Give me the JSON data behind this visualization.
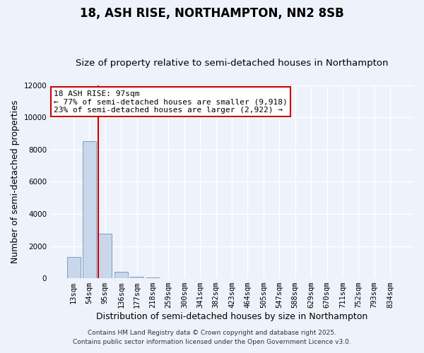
{
  "title": "18, ASH RISE, NORTHAMPTON, NN2 8SB",
  "subtitle": "Size of property relative to semi-detached houses in Northampton",
  "xlabel": "Distribution of semi-detached houses by size in Northampton",
  "ylabel": "Number of semi-detached properties",
  "categories": [
    "13sqm",
    "54sqm",
    "95sqm",
    "136sqm",
    "177sqm",
    "218sqm",
    "259sqm",
    "300sqm",
    "341sqm",
    "382sqm",
    "423sqm",
    "464sqm",
    "505sqm",
    "547sqm",
    "588sqm",
    "629sqm",
    "670sqm",
    "711sqm",
    "752sqm",
    "793sqm",
    "834sqm"
  ],
  "values": [
    1300,
    8500,
    2750,
    380,
    100,
    30,
    5,
    0,
    0,
    0,
    0,
    0,
    0,
    0,
    0,
    0,
    0,
    0,
    0,
    0,
    0
  ],
  "bar_color": "#c8d8ea",
  "bar_edge_color": "#7090b8",
  "vline_color": "#cc0000",
  "ylim": [
    0,
    12000
  ],
  "yticks": [
    0,
    2000,
    4000,
    6000,
    8000,
    10000,
    12000
  ],
  "annotation_title": "18 ASH RISE: 97sqm",
  "annotation_line1": "← 77% of semi-detached houses are smaller (9,918)",
  "annotation_line2": "23% of semi-detached houses are larger (2,922) →",
  "annotation_box_facecolor": "#ffffff",
  "annotation_border_color": "#cc0000",
  "footer1": "Contains HM Land Registry data © Crown copyright and database right 2025.",
  "footer2": "Contains public sector information licensed under the Open Government Licence v3.0.",
  "background_color": "#eef2fa",
  "grid_color": "#ffffff",
  "title_fontsize": 12,
  "subtitle_fontsize": 9.5,
  "axis_label_fontsize": 9,
  "tick_fontsize": 7.5,
  "annotation_fontsize": 8,
  "footer_fontsize": 6.5
}
